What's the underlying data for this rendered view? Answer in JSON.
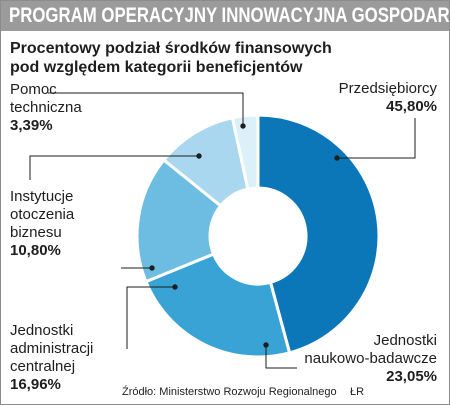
{
  "header": {
    "banner": "PROGRAM OPERACYJNY INNOWACYJNA GOSPODARKA"
  },
  "chart_data": {
    "type": "pie",
    "donut": true,
    "title": "Procentowy podział środków finansowych pod względem kategorii beneficjentów",
    "title_lines": [
      "Procentowy podział środków finansowych",
      "pod względem kategorii beneficjentów"
    ],
    "slices": [
      {
        "label_lines": [
          "Przedsiębiorcy"
        ],
        "label": "Przedsiębiorcy",
        "value": 45.8,
        "display": "45,80%",
        "color": "#0b77b8"
      },
      {
        "label_lines": [
          "Jednostki",
          "naukowo-badawcze"
        ],
        "label": "Jednostki naukowo-badawcze",
        "value": 23.05,
        "display": "23,05%",
        "color": "#3aa3d6"
      },
      {
        "label_lines": [
          "Jednostki",
          "administracji",
          "centralnej"
        ],
        "label": "Jednostki administracji centralnej",
        "value": 16.96,
        "display": "16,96%",
        "color": "#6dbde3"
      },
      {
        "label_lines": [
          "Instytucje",
          "otoczenia",
          "biznesu"
        ],
        "label": "Instytucje otoczenia biznesu",
        "value": 10.8,
        "display": "10,80%",
        "color": "#a8d7ef"
      },
      {
        "label_lines": [
          "Pomoc",
          "techniczna"
        ],
        "label": "Pomoc techniczna",
        "value": 3.39,
        "display": "3,39%",
        "color": "#dcf0fa"
      }
    ]
  },
  "footer": {
    "source": "Źródło: Ministerstwo Rozwoju Regionalnego",
    "credit": "ŁR"
  }
}
